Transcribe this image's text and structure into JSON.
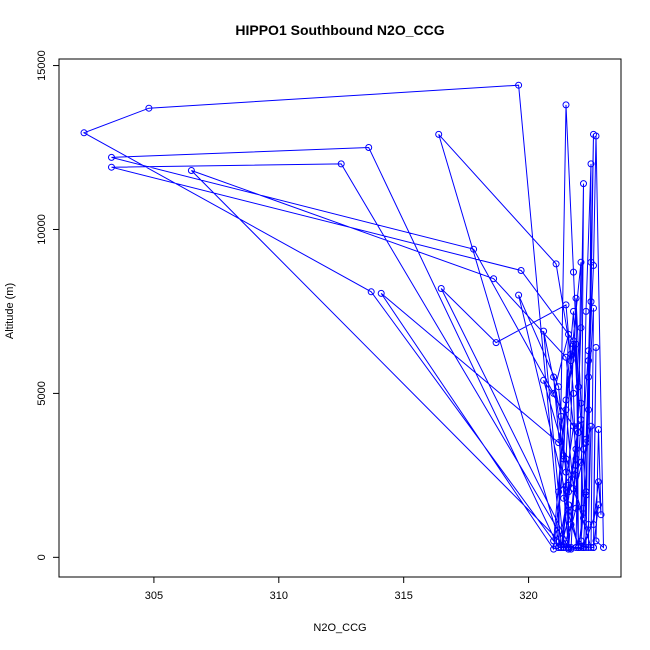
{
  "chart_data": {
    "type": "line",
    "title": "HIPPO1 Southbound N2O_CCG",
    "xlabel": "N2O_CCG",
    "ylabel": "Altitude (m)",
    "xlim": [
      301.2,
      323.7
    ],
    "ylim": [
      -600,
      15200
    ],
    "xticks": [
      305,
      310,
      315,
      320
    ],
    "yticks": [
      0,
      5000,
      10000,
      15000
    ],
    "xtick_labels": [
      "305",
      "310",
      "315",
      "320"
    ],
    "ytick_labels": [
      "0",
      "5000",
      "10000",
      "15000"
    ],
    "grid": false,
    "legend": "none",
    "colors": {
      "series": "#0000ff",
      "axes": "#000000"
    },
    "series": [
      {
        "points": [
          [
            322.2,
            300
          ],
          [
            322.3,
            2000
          ],
          [
            322.4,
            4500
          ],
          [
            322.5,
            7800
          ],
          [
            322.6,
            12900
          ],
          [
            322.5,
            9000
          ],
          [
            322.4,
            6000
          ],
          [
            322.3,
            3500
          ],
          [
            322.2,
            1500
          ],
          [
            322.1,
            500
          ],
          [
            321.7,
            300
          ],
          [
            321.2,
            300
          ],
          [
            321.5,
            13800
          ],
          [
            321.8,
            8700
          ],
          [
            322.0,
            5200
          ],
          [
            321.9,
            2800
          ],
          [
            321.7,
            1000
          ],
          [
            321.4,
            300
          ],
          [
            322.1,
            300
          ],
          [
            322.2,
            11400
          ],
          [
            322.1,
            7000
          ],
          [
            321.9,
            3000
          ],
          [
            321.6,
            250
          ],
          [
            322.4,
            300
          ],
          [
            322.5,
            12000
          ],
          [
            322.3,
            7500
          ],
          [
            322.2,
            3300
          ],
          [
            322.1,
            350
          ],
          [
            322.6,
            300
          ],
          [
            322.7,
            6400
          ],
          [
            322.6,
            1000
          ],
          [
            322.8,
            2300
          ],
          [
            322.9,
            1300
          ],
          [
            322.8,
            3900
          ],
          [
            322.7,
            500
          ],
          [
            323.0,
            300
          ],
          [
            322.7,
            12850
          ],
          [
            322.6,
            8900
          ],
          [
            322.4,
            5500
          ],
          [
            322.3,
            2000
          ],
          [
            322.0,
            300
          ],
          [
            321.3,
            300
          ],
          [
            319.6,
            14400
          ],
          [
            304.8,
            13700
          ],
          [
            302.2,
            12950
          ],
          [
            313.7,
            8100
          ],
          [
            321.0,
            500
          ],
          [
            321.8,
            7500
          ],
          [
            322.0,
            4000
          ],
          [
            321.6,
            2000
          ],
          [
            321.2,
            300
          ],
          [
            313.6,
            12500
          ],
          [
            303.3,
            12200
          ],
          [
            317.8,
            9400
          ],
          [
            321.0,
            5000
          ],
          [
            321.6,
            6800
          ],
          [
            321.4,
            3000
          ],
          [
            321.0,
            250
          ],
          [
            314.1,
            8050
          ],
          [
            321.2,
            3500
          ],
          [
            321.9,
            6500
          ],
          [
            322.0,
            3800
          ],
          [
            321.3,
            300
          ],
          [
            316.4,
            12900
          ],
          [
            321.1,
            8950
          ],
          [
            321.7,
            6200
          ],
          [
            321.5,
            3000
          ],
          [
            321.6,
            300
          ],
          [
            312.5,
            12000
          ],
          [
            303.3,
            11900
          ],
          [
            319.7,
            8750
          ],
          [
            321.8,
            6600
          ],
          [
            322.1,
            4200
          ],
          [
            321.9,
            1500
          ],
          [
            321.5,
            300
          ],
          [
            306.5,
            11800
          ],
          [
            318.6,
            8500
          ],
          [
            321.5,
            6100
          ],
          [
            321.9,
            3300
          ],
          [
            321.7,
            250
          ],
          [
            316.5,
            8200
          ],
          [
            318.7,
            6550
          ],
          [
            321.5,
            7700
          ],
          [
            321.8,
            5000
          ],
          [
            321.9,
            2500
          ],
          [
            322.0,
            300
          ],
          [
            319.6,
            8000
          ],
          [
            321.2,
            5200
          ],
          [
            321.5,
            2600
          ],
          [
            321.4,
            300
          ],
          [
            320.6,
            6900
          ],
          [
            321.3,
            4300
          ],
          [
            321.6,
            1600
          ],
          [
            321.6,
            300
          ],
          [
            321.0,
            5500
          ],
          [
            321.4,
            3100
          ],
          [
            321.1,
            350
          ],
          [
            321.9,
            300
          ],
          [
            322.1,
            9000
          ],
          [
            321.7,
            6000
          ],
          [
            321.5,
            4500
          ],
          [
            321.8,
            2100
          ],
          [
            322.5,
            300
          ],
          [
            322.6,
            7600
          ],
          [
            322.3,
            3600
          ],
          [
            322.2,
            1200
          ],
          [
            320.6,
            5400
          ],
          [
            321.8,
            4000
          ],
          [
            321.4,
            1800
          ],
          [
            322.0,
            300
          ],
          [
            321.9,
            7900
          ],
          [
            322.1,
            4700
          ],
          [
            322.3,
            1900
          ],
          [
            322.3,
            300
          ],
          [
            322.4,
            6300
          ],
          [
            322.1,
            2900
          ],
          [
            321.2,
            2000
          ],
          [
            321.5,
            4800
          ],
          [
            321.8,
            6500
          ],
          [
            321.6,
            2200
          ],
          [
            321.3,
            300
          ],
          [
            322.5,
            4000
          ],
          [
            322.4,
            1000
          ],
          [
            322.2,
            300
          ],
          [
            322.8,
            1600
          ],
          [
            322.6,
            300
          ]
        ]
      }
    ]
  }
}
